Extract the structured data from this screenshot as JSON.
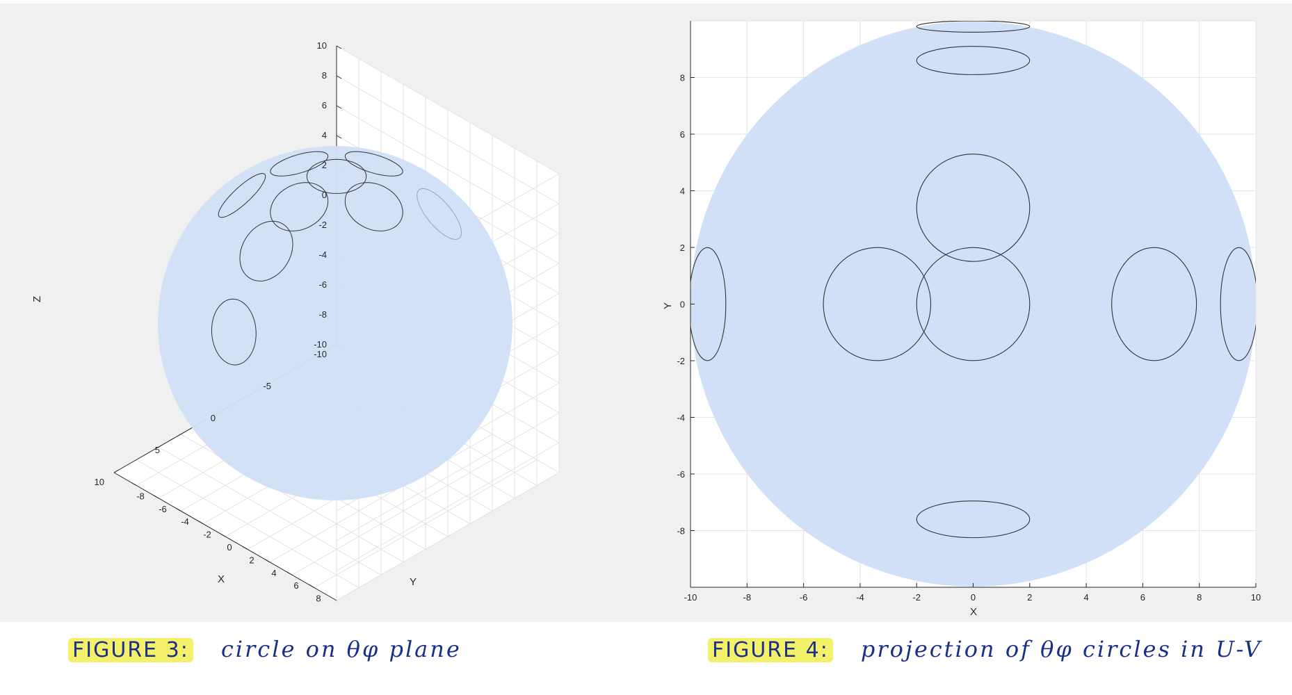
{
  "colors": {
    "background": "#f0f0f0",
    "sphere_fill": "#d1e0f7",
    "circle_stroke": "#333333",
    "grid": "#e3e3e3",
    "caption_ink": "#1a2f8a",
    "highlight": "#f5f06a"
  },
  "captions": {
    "left": {
      "label": "FIGURE 3:",
      "text": "circle on θφ plane"
    },
    "right": {
      "label": "FIGURE 4:",
      "text": "projection of θφ circles in U-V"
    }
  },
  "chart_data": [
    {
      "type": "scatter",
      "title": "",
      "description_kind": "3D sphere surface with small circles",
      "xlabel": "X",
      "ylabel": "Y",
      "zlabel": "Z",
      "xlim": [
        -10,
        10
      ],
      "ylim": [
        -10,
        10
      ],
      "zlim": [
        -10,
        10
      ],
      "x_ticks": [
        "-10",
        "-5",
        "0",
        "5",
        "10"
      ],
      "y_ticks": [
        "-8",
        "-6",
        "-4",
        "-2",
        "0",
        "2",
        "4",
        "6",
        "8"
      ],
      "z_ticks": [
        "10",
        "8",
        "6",
        "4",
        "2",
        "0",
        "-2",
        "-4",
        "-6",
        "-8",
        "-10"
      ],
      "grid": true,
      "sphere_radius": 10,
      "circles_theta_phi_deg": [
        {
          "theta": 0,
          "phi": 0
        },
        {
          "theta": 20,
          "phi": 90
        },
        {
          "theta": 20,
          "phi": -90
        },
        {
          "theta": 20,
          "phi": 0
        },
        {
          "theta": 20,
          "phi": 180
        },
        {
          "theta": 40,
          "phi": 0
        },
        {
          "theta": 70,
          "phi": 0
        },
        {
          "theta": 70,
          "phi": 180
        },
        {
          "theta": 60,
          "phi": -90
        }
      ]
    },
    {
      "type": "scatter",
      "title": "",
      "xlabel": "X",
      "ylabel": "Y",
      "xlim": [
        -10,
        10
      ],
      "ylim": [
        -10,
        10
      ],
      "x_ticks": [
        "-10",
        "-8",
        "-6",
        "-4",
        "-2",
        "0",
        "2",
        "4",
        "6",
        "8",
        "10"
      ],
      "y_ticks": [
        "8",
        "6",
        "4",
        "2",
        "0",
        "-2",
        "-4",
        "-6",
        "-8"
      ],
      "grid": true,
      "disk_radius": 10,
      "ellipses": [
        {
          "cx": 0,
          "cy": 0,
          "rx": 2.0,
          "ry": 2.0
        },
        {
          "cx": 0,
          "cy": 3.4,
          "rx": 2.0,
          "ry": 1.9
        },
        {
          "cx": 0,
          "cy": 8.6,
          "rx": 2.0,
          "ry": 0.5
        },
        {
          "cx": 0,
          "cy": 9.8,
          "rx": 2.0,
          "ry": 0.2
        },
        {
          "cx": 0,
          "cy": -7.6,
          "rx": 2.0,
          "ry": 0.65
        },
        {
          "cx": -3.4,
          "cy": 0,
          "rx": 1.9,
          "ry": 2.0
        },
        {
          "cx": 6.4,
          "cy": 0,
          "rx": 1.5,
          "ry": 2.0
        },
        {
          "cx": -9.4,
          "cy": 0,
          "rx": 0.65,
          "ry": 2.0
        },
        {
          "cx": 9.4,
          "cy": 0,
          "rx": 0.65,
          "ry": 2.0
        }
      ]
    }
  ]
}
